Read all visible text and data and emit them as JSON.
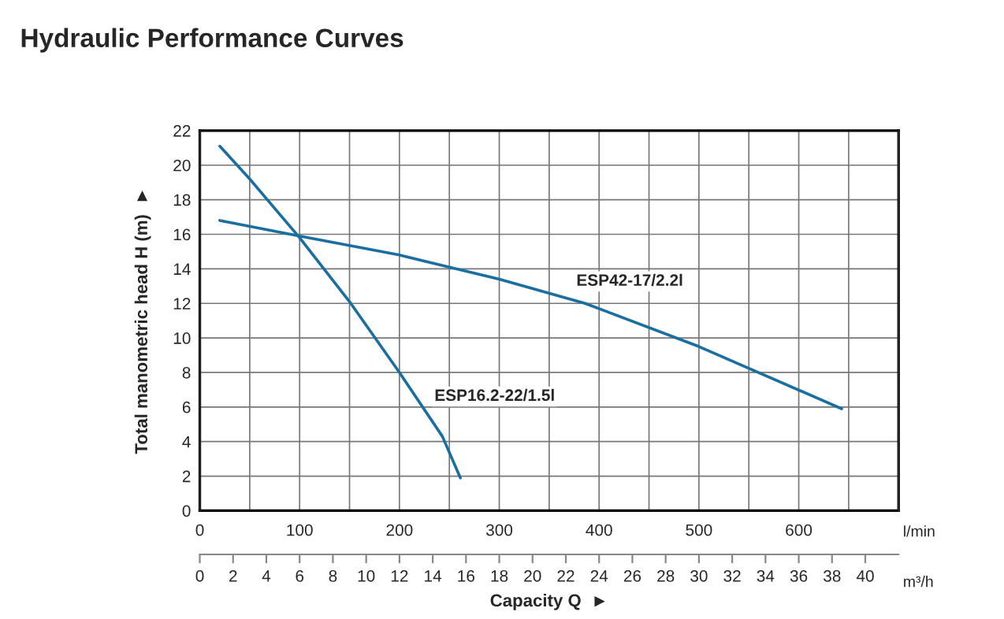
{
  "chart_data": {
    "type": "line",
    "title": "Hydraulic Performance Curves",
    "xlabel": "Capacity Q  ►",
    "ylabel": "Total manometric head H (m)  ►",
    "series": [
      {
        "name": "ESP16.2-22/1.5l",
        "color": "#1a6fa0",
        "x": [
          20,
          50,
          100,
          150,
          200,
          243,
          261
        ],
        "values": [
          21.1,
          19.2,
          15.8,
          12.1,
          8.0,
          4.3,
          1.9
        ]
      },
      {
        "name": "ESP42-17/2.2l",
        "color": "#1a6fa0",
        "x": [
          20,
          100,
          200,
          250,
          300,
          386,
          500,
          643
        ],
        "values": [
          16.8,
          15.9,
          14.8,
          14.1,
          13.4,
          12.0,
          9.5,
          5.9
        ]
      }
    ],
    "xlim": [
      0,
      700
    ],
    "xticks": [
      0,
      {
        "value": 50,
        "label": null
      },
      100,
      {
        "value": 150,
        "label": null
      },
      200,
      {
        "value": 250,
        "label": null
      },
      300,
      {
        "value": 350,
        "label": null
      },
      400,
      {
        "value": 450,
        "label": null
      },
      500,
      {
        "value": 550,
        "label": null
      },
      600,
      {
        "value": 650,
        "label": null
      }
    ],
    "x2lim": [
      0,
      42
    ],
    "x2ticks": [
      0,
      2,
      4,
      6,
      8,
      10,
      12,
      14,
      16,
      18,
      20,
      22,
      24,
      26,
      28,
      30,
      32,
      34,
      36,
      38,
      40
    ],
    "ylim": [
      0,
      22
    ],
    "yticks": [
      0,
      2,
      4,
      6,
      8,
      10,
      12,
      14,
      16,
      18,
      20,
      22
    ],
    "grid": true,
    "legend": false,
    "marker": "none",
    "line_style": "solid",
    "annotations": [
      "l/min",
      "m³/h"
    ]
  }
}
